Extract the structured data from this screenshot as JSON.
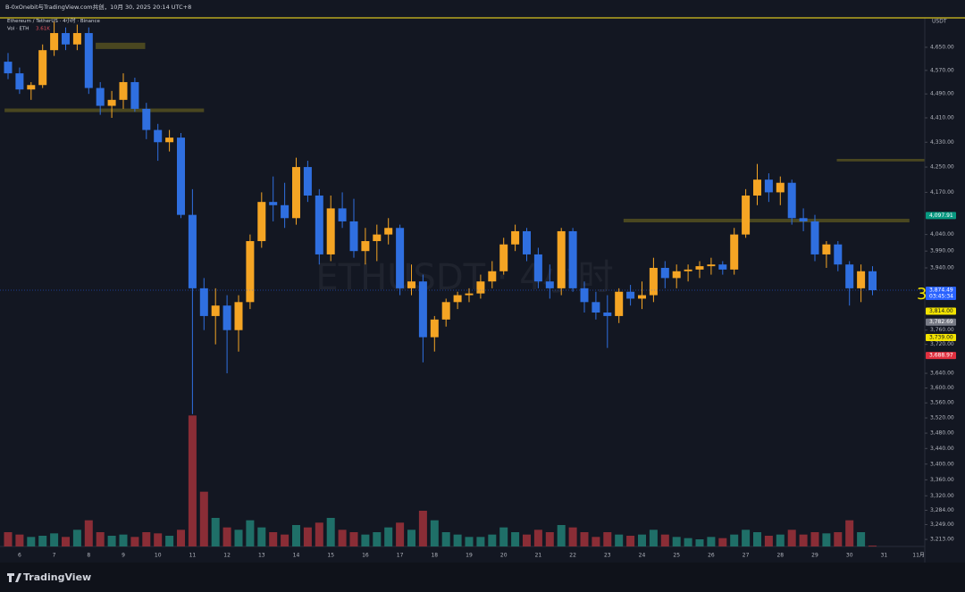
{
  "chart_data": {
    "type": "candlestick",
    "header": "B-0xOnebit与TradingView.com共创，10月 30, 2025 20:14 UTC+8",
    "symbol": "Ethereum / TetherUS · 4小时 · Binance",
    "volume_label": "Vol · ETH",
    "volume_value_label": "3.61K",
    "watermark": "ETHUSDT · 4小时",
    "currency": "USDT",
    "brand": "TradingView",
    "annotation": "3",
    "log_scale": true,
    "grid": false,
    "up_color": "#f5a524",
    "down_color": "#2f6fe0",
    "volume_up_color": "#1f6f68",
    "volume_down_color": "#8a2d36",
    "zone_color": "#4a4720",
    "categories": [
      null,
      "6",
      null,
      null,
      "7",
      null,
      null,
      "8",
      null,
      null,
      "9",
      null,
      null,
      "10",
      null,
      null,
      "11",
      null,
      null,
      "12",
      null,
      null,
      "13",
      null,
      null,
      "14",
      null,
      null,
      "15",
      null,
      null,
      "16",
      null,
      null,
      "17",
      null,
      null,
      "18",
      null,
      null,
      "19",
      null,
      null,
      "20",
      null,
      null,
      "21",
      null,
      null,
      "22",
      null,
      null,
      "23",
      null,
      null,
      "24",
      null,
      null,
      "25",
      null,
      null,
      "26",
      null,
      null,
      "27",
      null,
      null,
      "28",
      null,
      null,
      "29",
      null,
      null,
      "30",
      null,
      null,
      "31",
      null,
      null,
      "11月"
    ],
    "open": [
      4600,
      4560,
      4505,
      4520,
      4640,
      4700,
      4660,
      4700,
      4510,
      4450,
      4470,
      4530,
      4440,
      4370,
      4330,
      4345,
      4100,
      3880,
      3800,
      3830,
      3760,
      3840,
      4020,
      4140,
      4130,
      4090,
      4250,
      4160,
      3980,
      4120,
      4080,
      3990,
      4020,
      4040,
      4060,
      3880,
      3900,
      3740,
      3790,
      3840,
      3860,
      3865,
      3900,
      3930,
      4010,
      4050,
      3980,
      3900,
      3880,
      4050,
      3880,
      3840,
      3810,
      3800,
      3870,
      3850,
      3860,
      3940,
      3910,
      3930,
      3935,
      3945,
      3950,
      3935,
      4040,
      4160,
      4210,
      4170,
      4200,
      4090,
      4080,
      3980,
      4010,
      3950,
      3880,
      3930,
      null,
      null,
      null,
      null
    ],
    "high": [
      4630,
      4580,
      4530,
      4660,
      4740,
      4720,
      4730,
      4720,
      4530,
      4500,
      4560,
      4545,
      4460,
      4390,
      4370,
      4360,
      4180,
      3910,
      3880,
      3860,
      3860,
      4040,
      4170,
      4220,
      4200,
      4280,
      4270,
      4180,
      4160,
      4170,
      4150,
      4060,
      4070,
      4090,
      4070,
      3950,
      3920,
      3800,
      3850,
      3870,
      3880,
      3920,
      3960,
      4030,
      4070,
      4060,
      4000,
      3950,
      4060,
      4060,
      3900,
      3870,
      3860,
      3880,
      3890,
      3900,
      3970,
      3960,
      3950,
      3950,
      3960,
      3970,
      3960,
      4060,
      4180,
      4260,
      4230,
      4220,
      4210,
      4120,
      4100,
      4020,
      4020,
      3960,
      3950,
      3945,
      null,
      null,
      null,
      null
    ],
    "low": [
      4540,
      4490,
      4470,
      4510,
      4620,
      4640,
      4640,
      4490,
      4420,
      4410,
      4440,
      4430,
      4340,
      4270,
      4300,
      4090,
      3530,
      3760,
      3720,
      3640,
      3700,
      3820,
      4000,
      4080,
      4060,
      4070,
      4140,
      3950,
      3960,
      4060,
      3970,
      3950,
      3960,
      4010,
      3860,
      3860,
      3670,
      3700,
      3770,
      3820,
      3840,
      3850,
      3880,
      3920,
      3990,
      3960,
      3880,
      3850,
      3860,
      3870,
      3810,
      3790,
      3710,
      3780,
      3830,
      3820,
      3840,
      3880,
      3880,
      3900,
      3910,
      3920,
      3920,
      3920,
      4030,
      4130,
      4140,
      4130,
      4070,
      4050,
      3960,
      3940,
      3930,
      3830,
      3840,
      3860,
      null,
      null,
      null,
      null
    ],
    "close": [
      4560,
      4505,
      4520,
      4640,
      4700,
      4660,
      4700,
      4510,
      4450,
      4470,
      4530,
      4440,
      4370,
      4330,
      4345,
      4100,
      3880,
      3800,
      3830,
      3760,
      3840,
      4020,
      4140,
      4130,
      4090,
      4250,
      4160,
      3980,
      4120,
      4080,
      3990,
      4020,
      4040,
      4060,
      3880,
      3900,
      3740,
      3790,
      3840,
      3860,
      3865,
      3900,
      3930,
      4010,
      4050,
      3980,
      3900,
      3880,
      4050,
      3880,
      3840,
      3810,
      3800,
      3870,
      3850,
      3860,
      3940,
      3910,
      3930,
      3935,
      3945,
      3950,
      3935,
      4040,
      4160,
      4210,
      4170,
      4200,
      4090,
      4080,
      3980,
      4010,
      3950,
      3880,
      3930,
      3874.49,
      null,
      null,
      null,
      null
    ],
    "volume": [
      60,
      50,
      40,
      45,
      55,
      40,
      70,
      110,
      60,
      45,
      50,
      40,
      60,
      55,
      45,
      70,
      550,
      230,
      120,
      80,
      70,
      110,
      80,
      60,
      50,
      90,
      80,
      100,
      120,
      70,
      60,
      50,
      60,
      80,
      100,
      70,
      150,
      110,
      60,
      50,
      40,
      40,
      50,
      80,
      60,
      50,
      70,
      60,
      90,
      80,
      60,
      40,
      60,
      50,
      45,
      50,
      70,
      50,
      40,
      35,
      30,
      40,
      35,
      50,
      70,
      60,
      45,
      50,
      70,
      50,
      60,
      55,
      60,
      110,
      60,
      3.61,
      null,
      null,
      null,
      null
    ],
    "volume_lim": [
      0,
      600
    ],
    "ylim": [
      3196,
      4754
    ],
    "yticks": [
      {
        "value": 4650,
        "label": "4,650.00"
      },
      {
        "value": 4570,
        "label": "4,570.00"
      },
      {
        "value": 4490,
        "label": "4,490.00"
      },
      {
        "value": 4410,
        "label": "4,410.00"
      },
      {
        "value": 4330,
        "label": "4,330.00"
      },
      {
        "value": 4250,
        "label": "4,250.00"
      },
      {
        "value": 4170,
        "label": "4,170.00"
      },
      {
        "value": 4040,
        "label": "4,040.00"
      },
      {
        "value": 3990,
        "label": "3,990.00"
      },
      {
        "value": 3940,
        "label": "3,940.00"
      },
      {
        "value": 3760,
        "label": "3,760.00"
      },
      {
        "value": 3720,
        "label": "3,720.00"
      },
      {
        "value": 3640,
        "label": "3,640.00"
      },
      {
        "value": 3600,
        "label": "3,600.00"
      },
      {
        "value": 3560,
        "label": "3,560.00"
      },
      {
        "value": 3520,
        "label": "3,520.00"
      },
      {
        "value": 3480,
        "label": "3,480.00"
      },
      {
        "value": 3440,
        "label": "3,440.00"
      },
      {
        "value": 3400,
        "label": "3,400.00"
      },
      {
        "value": 3360,
        "label": "3,360.00"
      },
      {
        "value": 3320,
        "label": "3,320.00"
      },
      {
        "value": 3284,
        "label": "3,284.00"
      },
      {
        "value": 3249,
        "label": "3,249.00"
      },
      {
        "value": 3213,
        "label": "3,213.00"
      }
    ],
    "price_labels": [
      {
        "value": 4097.91,
        "label": "4,097.91",
        "color": "#089981"
      },
      {
        "value": 3874.49,
        "label": "3,874.49",
        "sublabel": "03:45:34",
        "color": "#2962ff"
      },
      {
        "value": 3814,
        "label": "3,814.00",
        "color": "#f2e300"
      },
      {
        "value": 3782.69,
        "label": "3,782.69",
        "color": "#787b86"
      },
      {
        "value": 3739,
        "label": "3,739.00",
        "color": "#f2e300"
      },
      {
        "value": 3688.97,
        "label": "3,688.97",
        "color": "#e0303f"
      }
    ],
    "zones": [
      {
        "start": 7.6,
        "end": 11.9,
        "low": 4644,
        "high": 4666
      },
      {
        "start": -0.3,
        "end": 17,
        "low": 4429,
        "high": 4441
      },
      {
        "start": 71.9,
        "end": 79.5,
        "low": 4268,
        "high": 4276
      },
      {
        "start": 53.4,
        "end": 78.2,
        "low": 4077,
        "high": 4088
      }
    ]
  }
}
